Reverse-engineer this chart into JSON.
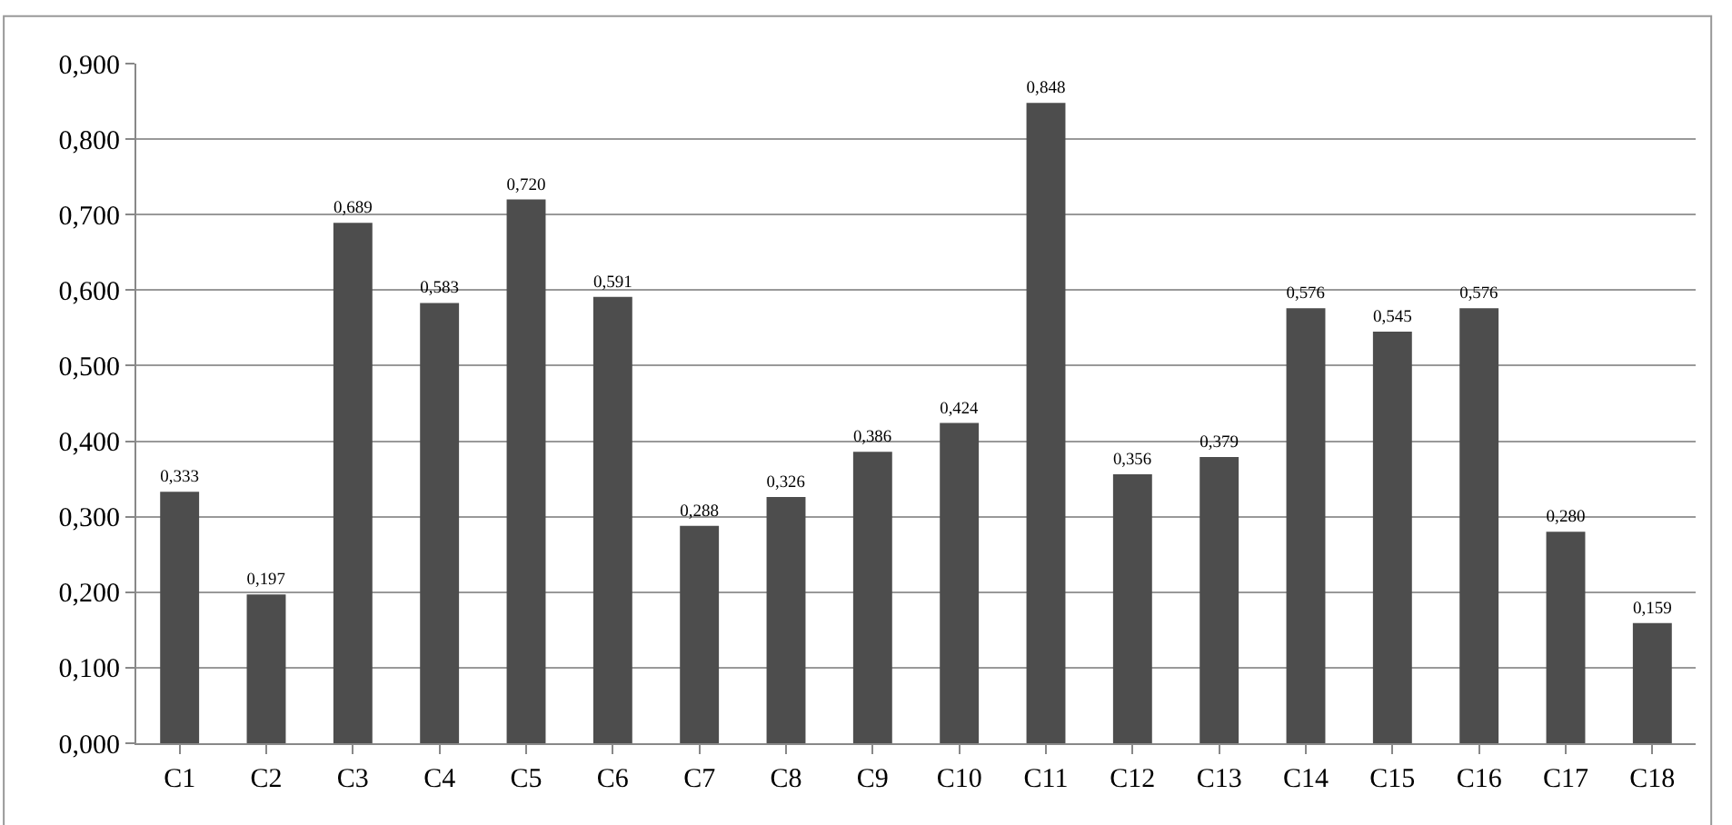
{
  "chart_data": {
    "type": "bar",
    "categories": [
      "C1",
      "C2",
      "C3",
      "C4",
      "C5",
      "C6",
      "C7",
      "C8",
      "C9",
      "C10",
      "C11",
      "C12",
      "C13",
      "C14",
      "C15",
      "C16",
      "C17",
      "C18"
    ],
    "values": [
      0.333,
      0.197,
      0.689,
      0.583,
      0.72,
      0.591,
      0.288,
      0.326,
      0.386,
      0.424,
      0.848,
      0.356,
      0.379,
      0.576,
      0.545,
      0.576,
      0.28,
      0.159
    ],
    "value_labels": [
      "0,333",
      "0,197",
      "0,689",
      "0,583",
      "0,720",
      "0,591",
      "0,288",
      "0,326",
      "0,386",
      "0,424",
      "0,848",
      "0,356",
      "0,379",
      "0,576",
      "0,545",
      "0,576",
      "0,280",
      "0,159"
    ],
    "color": "#4d4d4d",
    "ylim": [
      0,
      0.9
    ],
    "yticks": [
      {
        "value": 0,
        "label": "0,000"
      },
      {
        "value": 0.1,
        "label": "0,100"
      },
      {
        "value": 0.2,
        "label": "0,200"
      },
      {
        "value": 0.3,
        "label": "0,300"
      },
      {
        "value": 0.4,
        "label": "0,400"
      },
      {
        "value": 0.5,
        "label": "0,500"
      },
      {
        "value": 0.6,
        "label": "0,600"
      },
      {
        "value": 0.7,
        "label": "0,700"
      },
      {
        "value": 0.8,
        "label": "0,800"
      },
      {
        "value": 0.9,
        "label": "0,900"
      }
    ],
    "grid": "y",
    "legend": false
  }
}
